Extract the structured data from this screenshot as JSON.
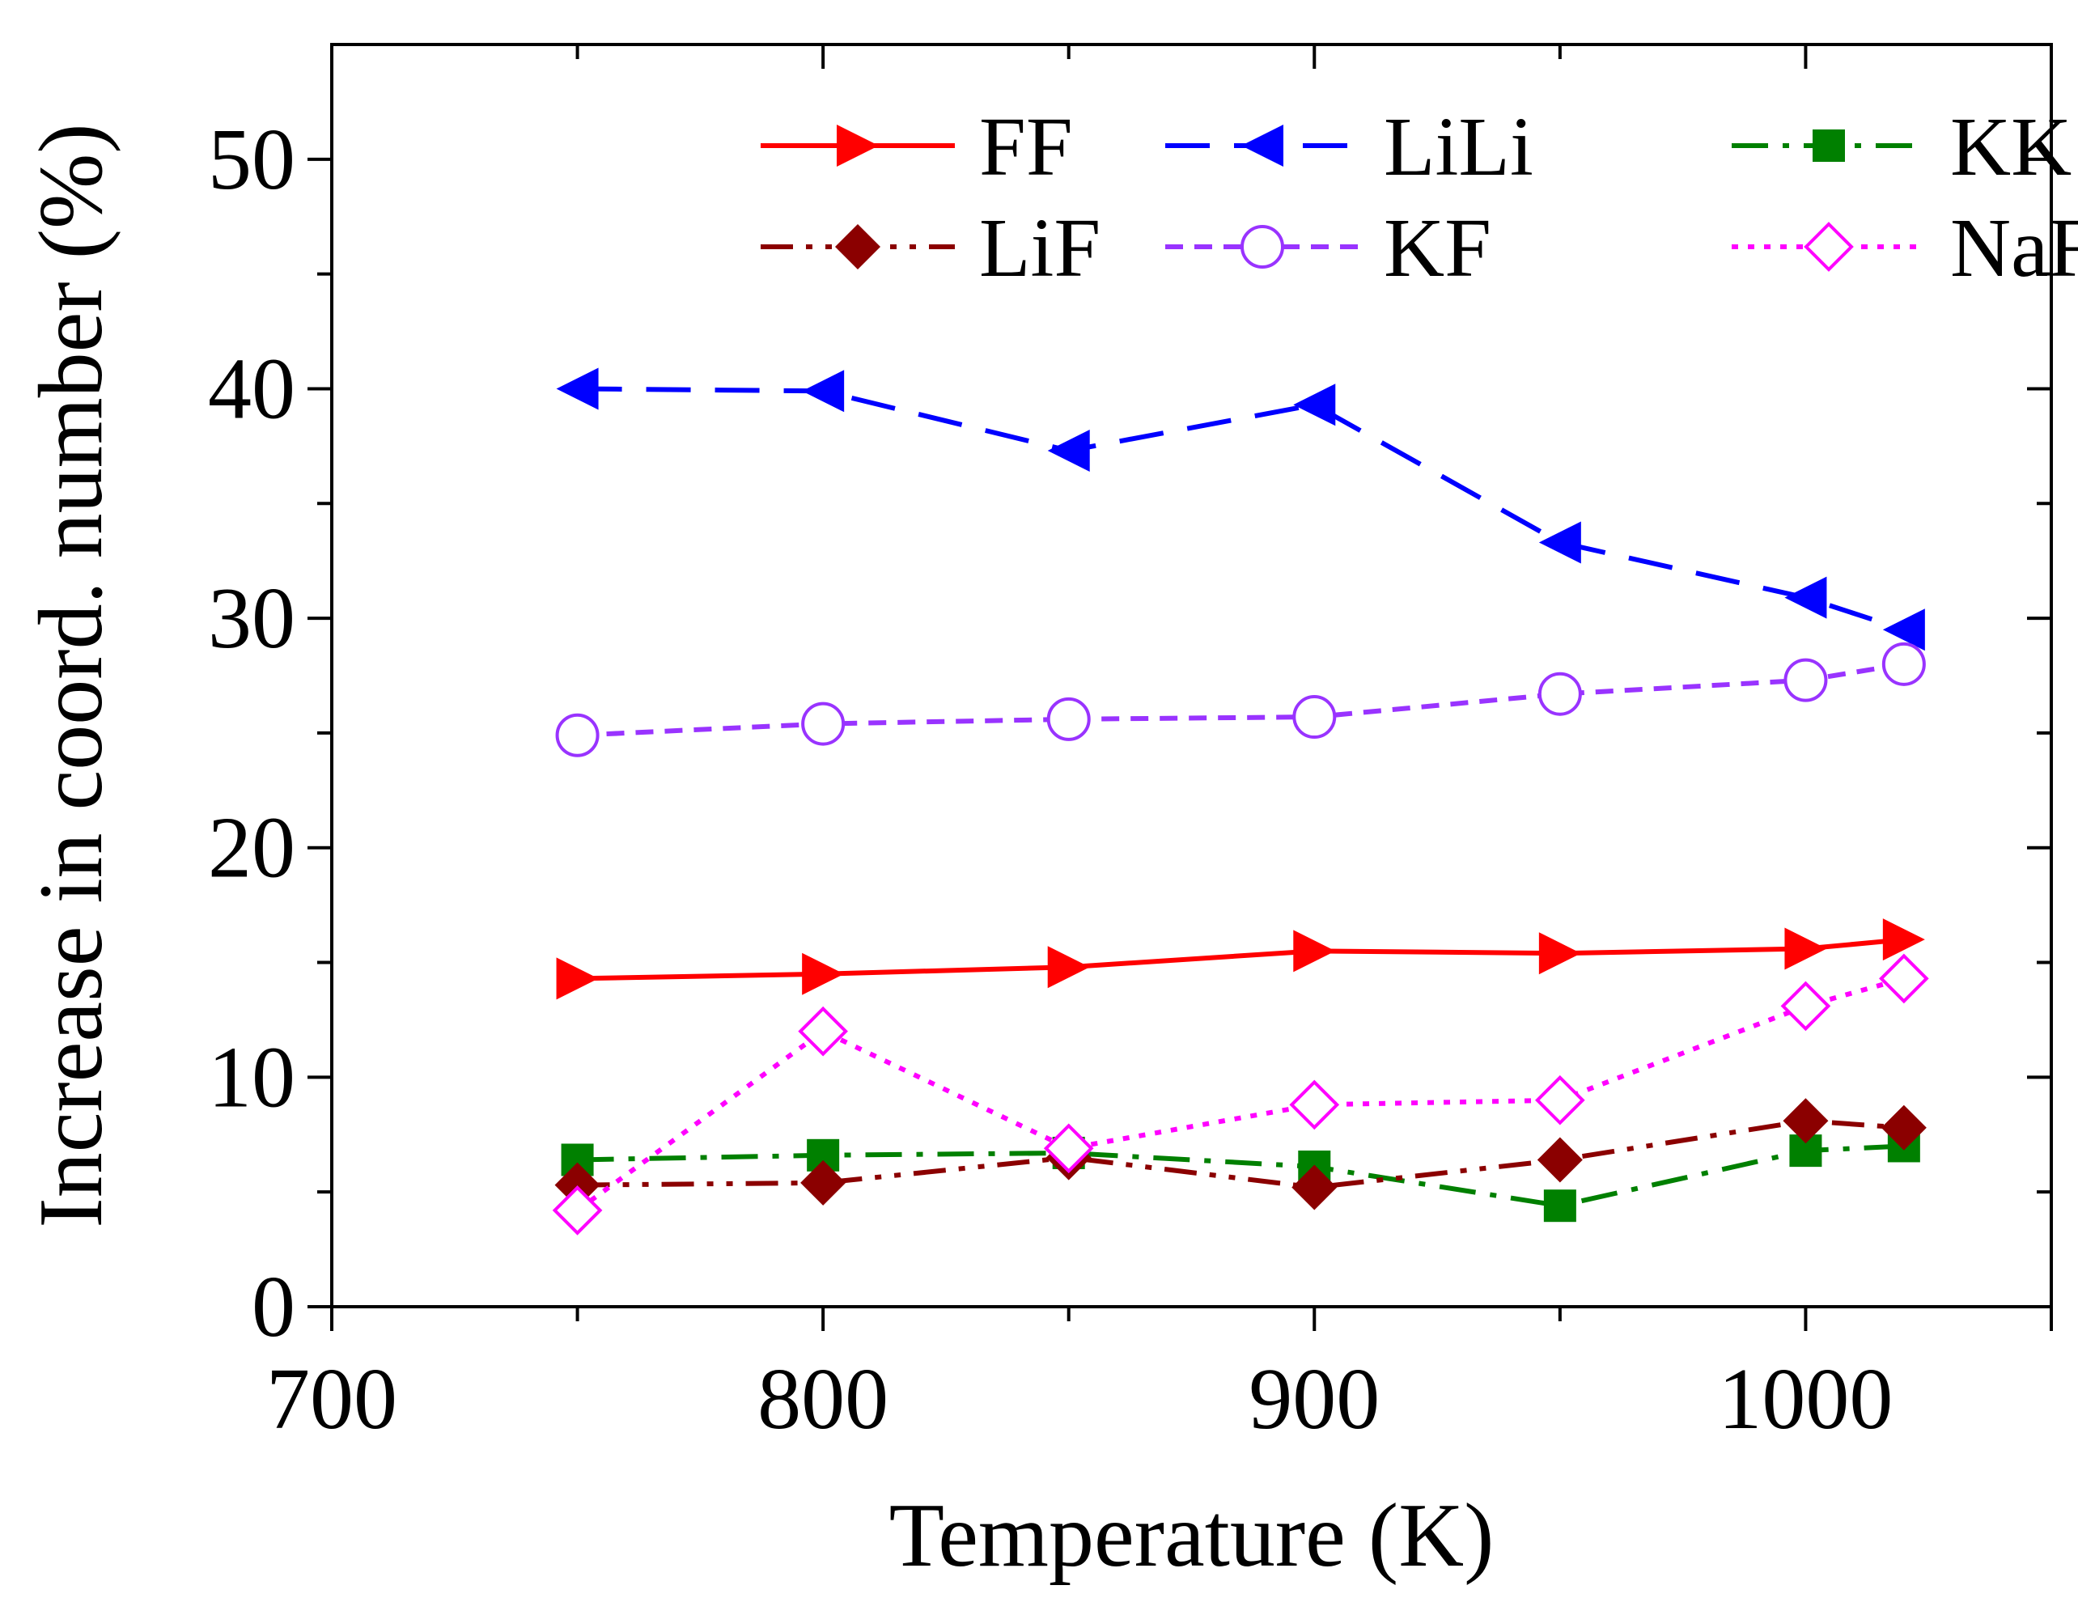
{
  "chart_data": {
    "type": "line",
    "title": "",
    "xlabel": "Temperature (K)",
    "ylabel": "Increase in coord. number (%)",
    "xlim": [
      700,
      1050
    ],
    "ylim": [
      0,
      55
    ],
    "xticks": [
      700,
      800,
      900,
      1000
    ],
    "yticks": [
      0,
      10,
      20,
      30,
      40,
      50
    ],
    "grid": false,
    "legend_placement": "top",
    "series": [
      {
        "name": "FF",
        "color": "#ff0000",
        "marker": "triangle-right",
        "line": "solid",
        "x": [
          750,
          800,
          850,
          900,
          950,
          1000,
          1020
        ],
        "y": [
          14.3,
          14.5,
          14.8,
          15.5,
          15.4,
          15.6,
          16.0
        ]
      },
      {
        "name": "LiLi",
        "color": "#0000ff",
        "marker": "triangle-left",
        "line": "dash",
        "x": [
          750,
          800,
          850,
          900,
          950,
          1000,
          1020
        ],
        "y": [
          40.0,
          39.9,
          37.3,
          39.3,
          33.3,
          30.9,
          29.5
        ]
      },
      {
        "name": "KK",
        "color": "#008000",
        "marker": "square",
        "line": "dashdot",
        "x": [
          750,
          800,
          850,
          900,
          950,
          1000,
          1020
        ],
        "y": [
          6.4,
          6.6,
          6.7,
          6.1,
          4.4,
          6.8,
          7.0
        ]
      },
      {
        "name": "LiF",
        "color": "#8b0000",
        "marker": "diamond",
        "line": "dashdotdot",
        "x": [
          750,
          800,
          850,
          900,
          950,
          1000,
          1020
        ],
        "y": [
          5.3,
          5.4,
          6.5,
          5.2,
          6.4,
          8.1,
          7.8
        ]
      },
      {
        "name": "KF",
        "color": "#9933ff",
        "marker": "circle-open",
        "line": "shortdash",
        "x": [
          750,
          800,
          850,
          900,
          950,
          1000,
          1020
        ],
        "y": [
          24.9,
          25.4,
          25.6,
          25.7,
          26.7,
          27.3,
          28.0
        ]
      },
      {
        "name": "NaF",
        "color": "#ff00ff",
        "marker": "diamond-open",
        "line": "dot",
        "x": [
          750,
          800,
          850,
          900,
          950,
          1000,
          1020
        ],
        "y": [
          4.2,
          12.0,
          6.9,
          8.8,
          9.0,
          13.1,
          14.3
        ]
      }
    ]
  }
}
